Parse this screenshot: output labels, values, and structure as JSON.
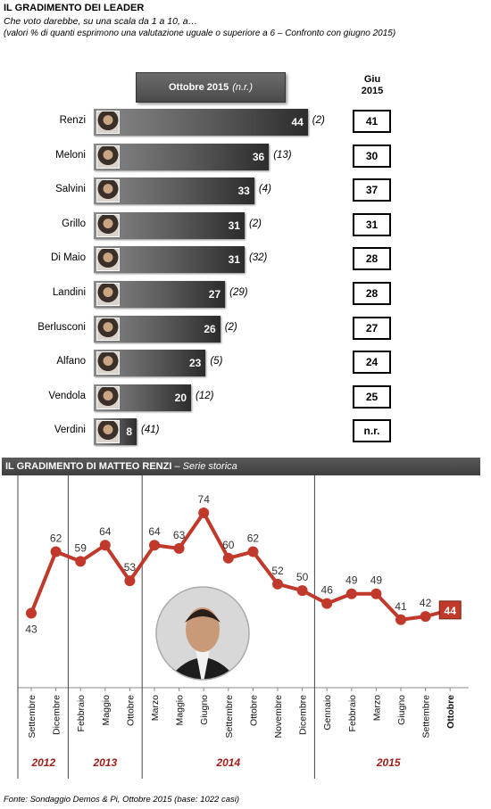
{
  "header": {
    "title": "IL GRADIMENTO DEI LEADER",
    "subtitle": "Che voto darebbe, su una scala da 1 a 10, a…",
    "note": "(valori % di quanti esprimono una valutazione uguale o superiore a 6 – Confronto con giugno 2015)"
  },
  "columns": {
    "current_label": "Ottobre 2015",
    "current_suffix": "(n.r.)",
    "previous_label_line1": "Giu",
    "previous_label_line2": "2015"
  },
  "chart_data": [
    {
      "type": "bar",
      "categories": [
        "Renzi",
        "Meloni",
        "Salvini",
        "Grillo",
        "Di Maio",
        "Landini",
        "Berlusconi",
        "Alfano",
        "Vendola",
        "Verdini"
      ],
      "series": [
        {
          "name": "Ottobre 2015",
          "values": [
            44,
            36,
            33,
            31,
            31,
            27,
            26,
            23,
            20,
            8
          ]
        }
      ],
      "nr": [
        "(2)",
        "(13)",
        "(4)",
        "(2)",
        "(32)",
        "(29)",
        "(2)",
        "(5)",
        "(12)",
        "(41)"
      ],
      "giu_2015": [
        "41",
        "30",
        "37",
        "31",
        "28",
        "28",
        "27",
        "24",
        "25",
        "n.r."
      ]
    },
    {
      "type": "line",
      "title": "IL GRADIMENTO DI MATTEO RENZI",
      "subtitle": "Serie storica",
      "x": [
        "Settembre",
        "Dicembre",
        "Febbraio",
        "Maggio",
        "Ottobre",
        "Marzo",
        "Maggio",
        "Giugno",
        "Settembre",
        "Ottobre",
        "Novembre",
        "Dicembre",
        "Gennaio",
        "Febbraio",
        "Marzo",
        "Giugno",
        "Settembre",
        "Ottobre"
      ],
      "values": [
        43,
        62,
        59,
        64,
        53,
        64,
        63,
        74,
        60,
        62,
        52,
        50,
        46,
        49,
        49,
        41,
        42,
        44
      ],
      "years": [
        {
          "label": "2012",
          "from": 0,
          "to": 1
        },
        {
          "label": "2013",
          "from": 2,
          "to": 4
        },
        {
          "label": "2014",
          "from": 5,
          "to": 11
        },
        {
          "label": "2015",
          "from": 12,
          "to": 17
        }
      ],
      "ylim": [
        20,
        85
      ],
      "line_color": "#c0392b"
    }
  ],
  "source": "Fonte: Sondaggio Demos & Pi, Ottobre 2015 (base: 1022 casi)"
}
